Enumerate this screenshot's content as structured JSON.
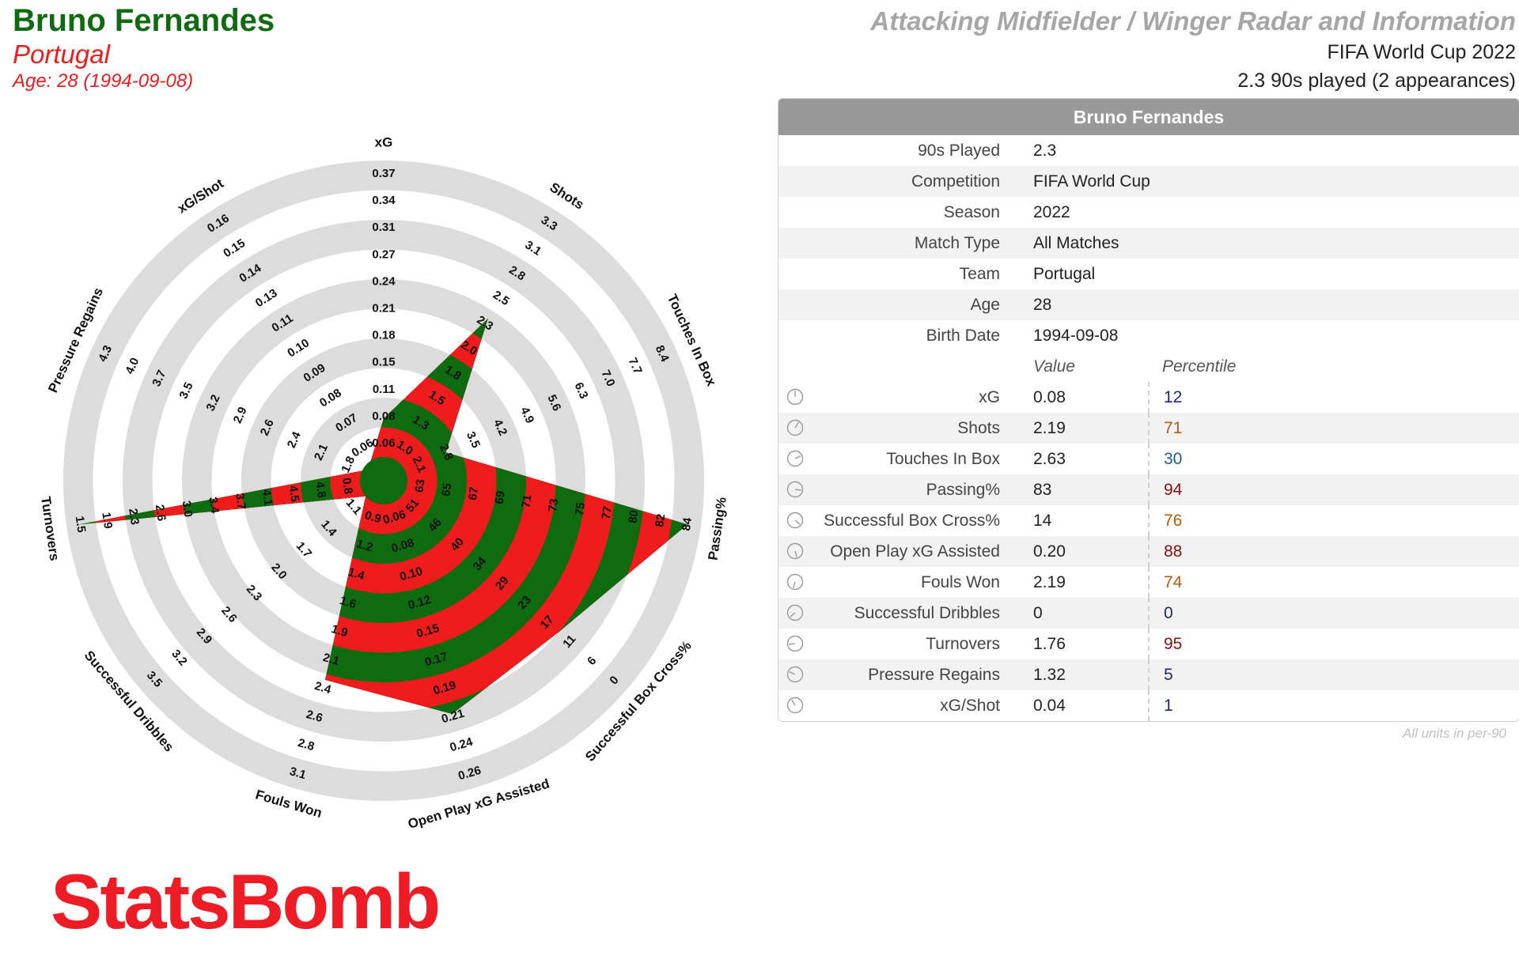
{
  "header": {
    "player_name": "Bruno Fernandes",
    "country": "Portugal",
    "age_line": "Age: 28 (1994-09-08)",
    "template_title": "Attacking Midfielder / Winger Radar and Information",
    "competition_line": "FIFA World Cup 2022",
    "played_line": "2.3 90s played (2 appearances)"
  },
  "table": {
    "title": "Bruno Fernandes",
    "info_rows": [
      {
        "label": "90s Played",
        "value": "2.3"
      },
      {
        "label": "Competition",
        "value": "FIFA World Cup"
      },
      {
        "label": "Season",
        "value": "2022"
      },
      {
        "label": "Match Type",
        "value": "All Matches"
      },
      {
        "label": "Team",
        "value": "Portugal"
      },
      {
        "label": "Age",
        "value": "28"
      },
      {
        "label": "Birth Date",
        "value": "1994-09-08"
      }
    ],
    "value_header": "Value",
    "percentile_header": "Percentile",
    "metric_rows": [
      {
        "label": "xG",
        "value": "0.08",
        "percentile": "12",
        "color": "#1d2a6e"
      },
      {
        "label": "Shots",
        "value": "2.19",
        "percentile": "71",
        "color": "#b85a10"
      },
      {
        "label": "Touches In Box",
        "value": "2.63",
        "percentile": "30",
        "color": "#1a6090"
      },
      {
        "label": "Passing%",
        "value": "83",
        "percentile": "94",
        "color": "#8b1010"
      },
      {
        "label": "Successful Box Cross%",
        "value": "14",
        "percentile": "76",
        "color": "#b85a10"
      },
      {
        "label": "Open Play xG Assisted",
        "value": "0.20",
        "percentile": "88",
        "color": "#8b1010"
      },
      {
        "label": "Fouls Won",
        "value": "2.19",
        "percentile": "74",
        "color": "#b85a10"
      },
      {
        "label": "Successful Dribbles",
        "value": "0",
        "percentile": "0",
        "color": "#1d2a6e"
      },
      {
        "label": "Turnovers",
        "value": "1.76",
        "percentile": "95",
        "color": "#8b1010"
      },
      {
        "label": "Pressure Regains",
        "value": "1.32",
        "percentile": "5",
        "color": "#1d2a6e"
      },
      {
        "label": "xG/Shot",
        "value": "0.04",
        "percentile": "1",
        "color": "#1d2a6e"
      }
    ],
    "units_note": "All units in per-90"
  },
  "logo_text": "StatsBomb",
  "colors": {
    "green": "#0f6b0f",
    "red": "#ee1c1c",
    "ring": "#dcdcdc"
  },
  "chart_data": {
    "type": "radar",
    "metrics": [
      {
        "name": "xG",
        "ticks": [
          "0.06",
          "0.08",
          "0.11",
          "0.15",
          "0.18",
          "0.21",
          "0.24",
          "0.27",
          "0.31",
          "0.34",
          "0.37"
        ],
        "value": 0.08,
        "level": 0.13
      },
      {
        "name": "Shots",
        "ticks": [
          "1.0",
          "1.3",
          "1.5",
          "1.8",
          "2.0",
          "2.3",
          "2.5",
          "2.8",
          "3.1",
          "3.3"
        ],
        "value": 2.19,
        "level": 0.57
      },
      {
        "name": "Touches In Box",
        "ticks": [
          "2.1",
          "2.8",
          "3.5",
          "4.2",
          "4.9",
          "5.6",
          "6.3",
          "7.0",
          "7.7",
          "8.4"
        ],
        "value": 2.63,
        "level": 0.15
      },
      {
        "name": "Passing%",
        "ticks": [
          "63",
          "65",
          "67",
          "69",
          "71",
          "73",
          "75",
          "77",
          "80",
          "82",
          "84"
        ],
        "value": 83,
        "level": 0.955
      },
      {
        "name": "Successful Box Cross%",
        "ticks": [
          "51",
          "46",
          "40",
          "34",
          "29",
          "23",
          "17",
          "11",
          "6",
          "0"
        ],
        "value": 14,
        "level": 0.7
      },
      {
        "name": "Open Play xG Assisted",
        "ticks": [
          "0.06",
          "0.08",
          "0.10",
          "0.12",
          "0.15",
          "0.17",
          "0.19",
          "0.21",
          "0.24",
          "0.26"
        ],
        "value": 0.2,
        "level": 0.74
      },
      {
        "name": "Fouls Won",
        "ticks": [
          "0.9",
          "1.2",
          "1.4",
          "1.6",
          "1.9",
          "2.1",
          "2.4",
          "2.6",
          "2.8",
          "3.1"
        ],
        "value": 2.19,
        "level": 0.62
      },
      {
        "name": "Successful Dribbles",
        "ticks": [
          "1.1",
          "1.4",
          "1.7",
          "2.0",
          "2.3",
          "2.6",
          "2.9",
          "3.2",
          "3.5"
        ],
        "value": 0,
        "level": 0
      },
      {
        "name": "Turnovers",
        "ticks": [
          "0.8",
          "4.8",
          "4.5",
          "4.1",
          "3.7",
          "3.4",
          "3.0",
          "2.6",
          "2.3",
          "1.9",
          "1.5"
        ],
        "value": 1.76,
        "level": 0.965
      },
      {
        "name": "Pressure Regains",
        "ticks": [
          "1.8",
          "2.1",
          "2.4",
          "2.6",
          "2.9",
          "3.2",
          "3.5",
          "3.7",
          "4.0",
          "4.3"
        ],
        "value": 1.32,
        "level": 0.0
      },
      {
        "name": "xG/Shot",
        "ticks": [
          "0.06",
          "0.07",
          "0.08",
          "0.09",
          "0.10",
          "0.11",
          "0.13",
          "0.14",
          "0.15",
          "0.16"
        ],
        "value": 0.04,
        "level": 0.0
      }
    ]
  }
}
